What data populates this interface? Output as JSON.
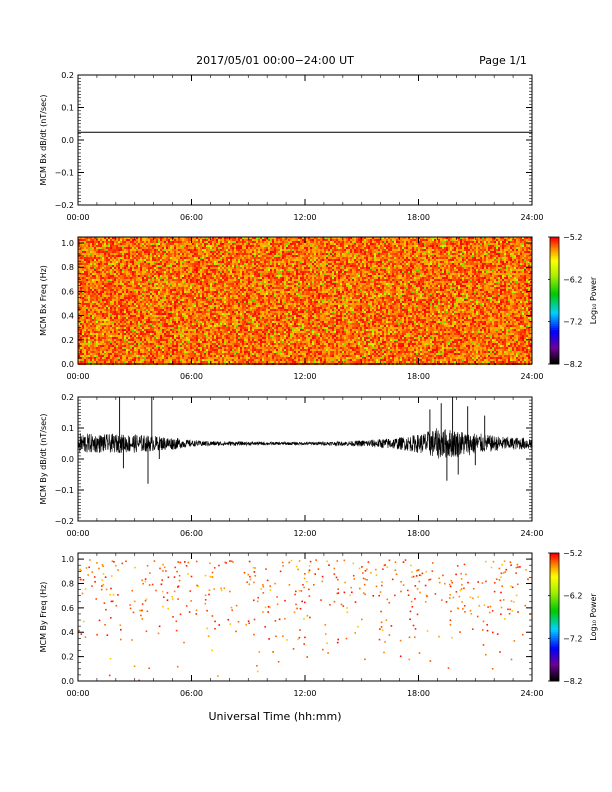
{
  "header": {
    "date_range": "2017/05/01  00:00−24:00 UT",
    "page": "Page 1/1"
  },
  "xaxis": {
    "label": "Universal Time (hh:mm)",
    "ticks": [
      "00:00",
      "06:00",
      "12:00",
      "18:00",
      "24:00"
    ],
    "range_hours": [
      0,
      24
    ]
  },
  "chart_data": [
    {
      "type": "line",
      "ylabel": "MCM Bx dB/dt (nT/sec)",
      "ylim": [
        -0.2,
        0.2
      ],
      "yticks": [
        "−0.2",
        "−0.1",
        "0.0",
        "0.1",
        "0.2"
      ],
      "series": [
        {
          "points": [
            [
              0,
              0.024
            ],
            [
              24,
              0.024
            ]
          ]
        }
      ]
    },
    {
      "type": "heatmap",
      "ylabel": "MCM Bx Freq (Hz)",
      "ylim": [
        0,
        1.05
      ],
      "yticks": [
        "0.0",
        "0.2",
        "0.4",
        "0.6",
        "0.8",
        "1.0"
      ],
      "colorbar": {
        "label": "Log₁₀ Power",
        "ticks": [
          "−5.2",
          "−6.2",
          "−7.2",
          "−8.2"
        ],
        "range": [
          -8.2,
          -5.2
        ]
      },
      "fill": "dense",
      "typical_range": [
        -5.6,
        -5.2
      ]
    },
    {
      "type": "line",
      "ylabel": "MCM By dB/dt (nT/sec)",
      "ylim": [
        -0.2,
        0.2
      ],
      "yticks": [
        "−0.2",
        "−0.1",
        "0.0",
        "0.1",
        "0.2"
      ],
      "series": [
        {
          "envelope": [
            [
              0,
              0.05,
              0.035
            ],
            [
              1,
              0.05,
              0.03
            ],
            [
              2,
              0.05,
              0.03
            ],
            [
              3,
              0.05,
              0.03
            ],
            [
              4,
              0.05,
              0.025
            ],
            [
              5,
              0.05,
              0.02
            ],
            [
              6,
              0.05,
              0.01
            ],
            [
              7,
              0.05,
              0.008
            ],
            [
              8,
              0.05,
              0.007
            ],
            [
              9,
              0.05,
              0.006
            ],
            [
              10,
              0.05,
              0.005
            ],
            [
              11,
              0.05,
              0.005
            ],
            [
              12,
              0.05,
              0.005
            ],
            [
              13,
              0.05,
              0.006
            ],
            [
              14,
              0.05,
              0.007
            ],
            [
              15,
              0.05,
              0.01
            ],
            [
              16,
              0.05,
              0.015
            ],
            [
              17,
              0.05,
              0.02
            ],
            [
              18,
              0.05,
              0.03
            ],
            [
              19,
              0.05,
              0.05
            ],
            [
              20,
              0.05,
              0.045
            ],
            [
              21,
              0.05,
              0.035
            ],
            [
              22,
              0.05,
              0.025
            ],
            [
              23,
              0.05,
              0.02
            ],
            [
              24,
              0.05,
              0.02
            ]
          ],
          "spikes": [
            [
              2.2,
              0.22
            ],
            [
              2.4,
              -0.03
            ],
            [
              3.7,
              -0.08
            ],
            [
              3.9,
              0.2
            ],
            [
              4.3,
              0.0
            ],
            [
              18.6,
              0.16
            ],
            [
              19.2,
              0.18
            ],
            [
              19.5,
              -0.07
            ],
            [
              19.8,
              0.2
            ],
            [
              20.1,
              -0.05
            ],
            [
              20.6,
              0.17
            ],
            [
              21.0,
              -0.02
            ],
            [
              21.5,
              0.14
            ]
          ]
        }
      ]
    },
    {
      "type": "heatmap",
      "ylabel": "MCM By Freq (Hz)",
      "ylim": [
        0,
        1.05
      ],
      "yticks": [
        "0.0",
        "0.2",
        "0.4",
        "0.6",
        "0.8",
        "1.0"
      ],
      "colorbar": {
        "label": "Log₁₀ Power",
        "ticks": [
          "−5.2",
          "−6.2",
          "−7.2",
          "−8.2"
        ],
        "range": [
          -8.2,
          -5.2
        ]
      },
      "fill": "sparse",
      "typical_range": [
        -5.5,
        -5.2
      ]
    }
  ]
}
